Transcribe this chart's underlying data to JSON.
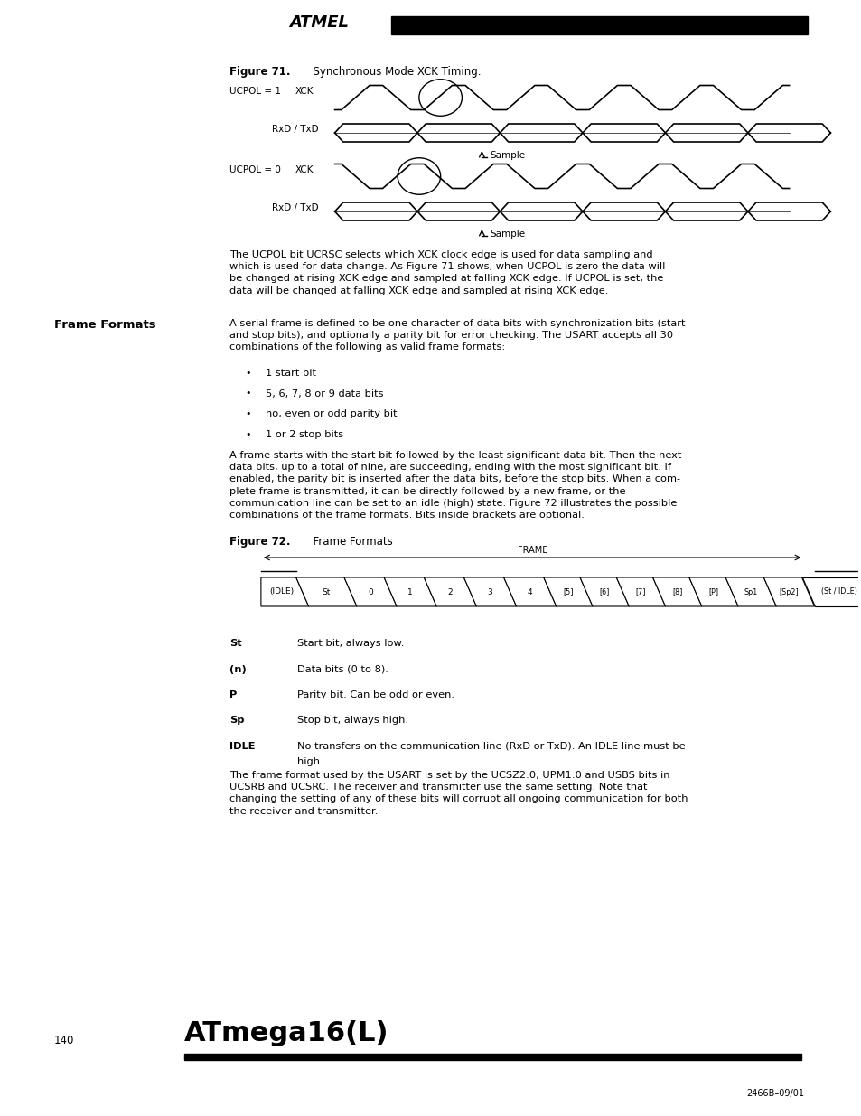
{
  "page_width": 9.54,
  "page_height": 12.35,
  "bg_color": "#ffffff",
  "figure71_caption_bold": "Figure 71.",
  "figure71_caption_rest": "  Synchronous Mode XCK Timing.",
  "figure72_caption_bold": "Figure 72.",
  "figure72_caption_rest": "  Frame Formats",
  "ucpol1_label": "UCPOL = 1",
  "ucpol0_label": "UCPOL = 0",
  "xck_label": "XCK",
  "rxd_txd_label": "RxD / TxD",
  "sample_label": "Sample",
  "frame_label": "FRAME",
  "idle_left": "(IDLE)",
  "idle_right": "(St / IDLE)",
  "frame_cells": [
    "St",
    "0",
    "1",
    "2",
    "3",
    "4",
    "[5]",
    "[6]",
    "[7]",
    "[8]",
    "[P]",
    "Sp1",
    "[Sp2]"
  ],
  "section_title": "Frame Formats",
  "para1": "A serial frame is defined to be one character of data bits with synchronization bits (start\nand stop bits), and optionally a parity bit for error checking. The USART accepts all 30\ncombinations of the following as valid frame formats:",
  "bullets": [
    "1 start bit",
    "5, 6, 7, 8 or 9 data bits",
    "no, even or odd parity bit",
    "1 or 2 stop bits"
  ],
  "para2": "A frame starts with the start bit followed by the least significant data bit. Then the next\ndata bits, up to a total of nine, are succeeding, ending with the most significant bit. If\nenabled, the parity bit is inserted after the data bits, before the stop bits. When a com-\nplete frame is transmitted, it can be directly followed by a new frame, or the\ncommunication line can be set to an idle (high) state. Figure 72 illustrates the possible\ncombinations of the frame formats. Bits inside brackets are optional.",
  "st_desc": "Start bit, always low.",
  "n_desc": "Data bits (0 to 8).",
  "p_desc": "Parity bit. Can be odd or even.",
  "sp_desc": "Stop bit, always high.",
  "idle_desc_line1": "No transfers on the communication line (RxD or TxD). An IDLE line must be",
  "idle_desc_line2": "high.",
  "para3": "The frame format used by the USART is set by the UCSZ2:0, UPM1:0 and USBS bits in\nUCSRB and UCSRC. The receiver and transmitter use the same setting. Note that\nchanging the setting of any of these bits will corrupt all ongoing communication for both\nthe receiver and transmitter.",
  "ucpol_text": "The UCPOL bit UCRSC selects which XCK clock edge is used for data sampling and\nwhich is used for data change. As Figure 71 shows, when UCPOL is zero the data will\nbe changed at rising XCK edge and sampled at falling XCK edge. If UCPOL is set, the\ndata will be changed at falling XCK edge and sampled at rising XCK edge.",
  "footer_page": "140",
  "footer_title": "ATmega16(L)",
  "footer_code": "2466B–09/01"
}
